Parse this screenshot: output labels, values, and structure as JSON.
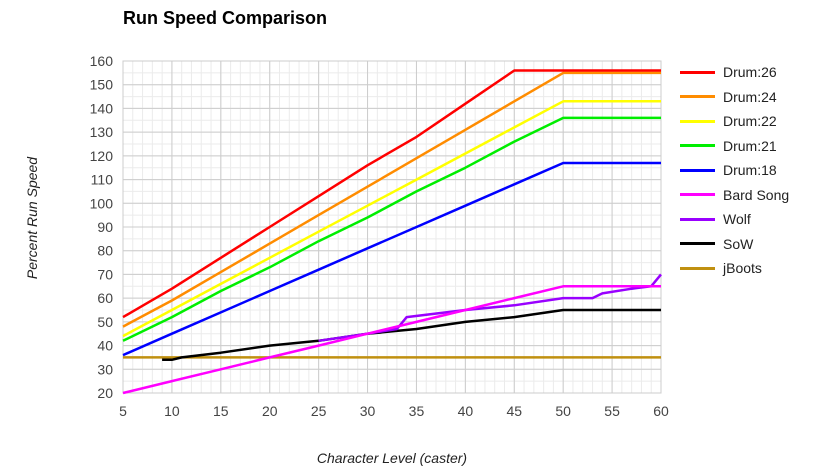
{
  "chart_data": {
    "type": "line",
    "title": "Run Speed Comparison",
    "xlabel": "Character Level (caster)",
    "ylabel": "Percent Run Speed",
    "xlim": [
      5,
      60
    ],
    "ylim": [
      20,
      160
    ],
    "x_ticks": [
      5,
      10,
      15,
      20,
      25,
      30,
      35,
      40,
      45,
      50,
      55,
      60
    ],
    "y_ticks": [
      20,
      30,
      40,
      50,
      60,
      70,
      80,
      90,
      100,
      110,
      120,
      130,
      140,
      150,
      160
    ],
    "grid": true,
    "legend_position": "right",
    "series": [
      {
        "name": "Drum:26",
        "color": "#ff0000",
        "points": [
          [
            5,
            52
          ],
          [
            10,
            64
          ],
          [
            15,
            77
          ],
          [
            20,
            90
          ],
          [
            25,
            103
          ],
          [
            30,
            116
          ],
          [
            35,
            128
          ],
          [
            40,
            142
          ],
          [
            45,
            156
          ],
          [
            60,
            156
          ]
        ]
      },
      {
        "name": "Drum:24",
        "color": "#ff8c00",
        "points": [
          [
            5,
            48
          ],
          [
            10,
            59
          ],
          [
            15,
            71
          ],
          [
            20,
            83
          ],
          [
            25,
            95
          ],
          [
            30,
            107
          ],
          [
            35,
            119
          ],
          [
            40,
            131
          ],
          [
            45,
            143
          ],
          [
            50,
            155
          ],
          [
            60,
            155
          ]
        ]
      },
      {
        "name": "Drum:22",
        "color": "#ffff00",
        "points": [
          [
            5,
            44
          ],
          [
            10,
            55
          ],
          [
            15,
            66
          ],
          [
            20,
            77
          ],
          [
            25,
            88
          ],
          [
            30,
            99
          ],
          [
            35,
            110
          ],
          [
            40,
            121
          ],
          [
            45,
            132
          ],
          [
            50,
            143
          ],
          [
            60,
            143
          ]
        ]
      },
      {
        "name": "Drum:21",
        "color": "#00ee00",
        "points": [
          [
            5,
            42
          ],
          [
            10,
            52
          ],
          [
            15,
            63
          ],
          [
            20,
            73
          ],
          [
            25,
            84
          ],
          [
            30,
            94
          ],
          [
            35,
            105
          ],
          [
            40,
            115
          ],
          [
            45,
            126
          ],
          [
            50,
            136
          ],
          [
            60,
            136
          ]
        ]
      },
      {
        "name": "Drum:18",
        "color": "#0000ff",
        "points": [
          [
            5,
            36
          ],
          [
            10,
            45
          ],
          [
            15,
            54
          ],
          [
            20,
            63
          ],
          [
            25,
            72
          ],
          [
            30,
            81
          ],
          [
            35,
            90
          ],
          [
            40,
            99
          ],
          [
            45,
            108
          ],
          [
            50,
            117
          ],
          [
            60,
            117
          ]
        ]
      },
      {
        "name": "Bard Song",
        "color": "#ff00ff",
        "points": [
          [
            5,
            20
          ],
          [
            10,
            25
          ],
          [
            15,
            30
          ],
          [
            20,
            35
          ],
          [
            25,
            40
          ],
          [
            30,
            45
          ],
          [
            35,
            50
          ],
          [
            40,
            55
          ],
          [
            45,
            60
          ],
          [
            50,
            65
          ],
          [
            60,
            65
          ]
        ]
      },
      {
        "name": "Wolf",
        "color": "#9900ff",
        "points": [
          [
            25,
            42
          ],
          [
            30,
            45
          ],
          [
            33,
            47
          ],
          [
            34,
            52
          ],
          [
            36,
            53
          ],
          [
            40,
            55
          ],
          [
            45,
            57
          ],
          [
            50,
            60
          ],
          [
            53,
            60
          ],
          [
            54,
            62
          ],
          [
            57,
            64
          ],
          [
            59,
            65
          ],
          [
            60,
            70
          ]
        ]
      },
      {
        "name": "SoW",
        "color": "#000000",
        "points": [
          [
            9,
            34
          ],
          [
            10,
            34
          ],
          [
            11,
            35
          ],
          [
            15,
            37
          ],
          [
            20,
            40
          ],
          [
            25,
            42
          ],
          [
            30,
            45
          ],
          [
            35,
            47
          ],
          [
            40,
            50
          ],
          [
            45,
            52
          ],
          [
            50,
            55
          ],
          [
            60,
            55
          ]
        ]
      },
      {
        "name": "jBoots",
        "color": "#c09010",
        "points": [
          [
            5,
            35
          ],
          [
            60,
            35
          ]
        ]
      }
    ]
  }
}
